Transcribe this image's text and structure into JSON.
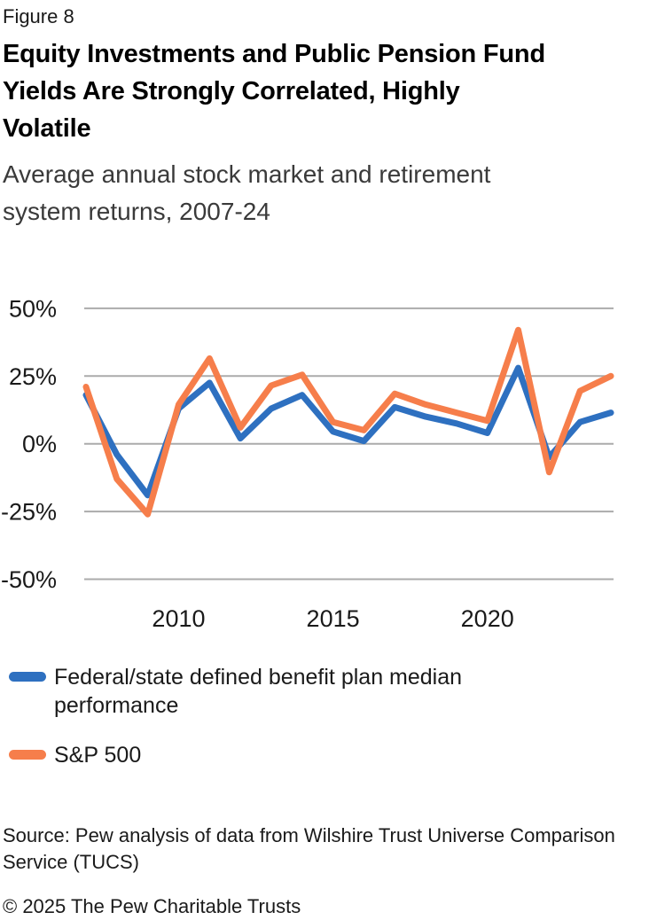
{
  "figure_label": "Figure 8",
  "title_lines": [
    "Equity Investments and Public Pension Fund",
    "Yields Are Strongly Correlated, Highly",
    "Volatile"
  ],
  "subtitle_lines": [
    "Average annual stock market and retirement",
    "system returns, 2007-24"
  ],
  "chart_data": {
    "type": "line",
    "x": [
      2007,
      2008,
      2009,
      2010,
      2011,
      2012,
      2013,
      2014,
      2015,
      2016,
      2017,
      2018,
      2019,
      2020,
      2021,
      2022,
      2023,
      2024
    ],
    "series": [
      {
        "name": "Federal/state defined benefit plan median performance",
        "color": "#2E70C0",
        "values": [
          18,
          -4,
          -19,
          13,
          22.5,
          2,
          13,
          18,
          4.5,
          1,
          13.5,
          10,
          7.5,
          4,
          28,
          -5,
          8,
          11.5
        ]
      },
      {
        "name": "S&P 500",
        "color": "#F67E4B",
        "values": [
          21,
          -13,
          -26,
          14.5,
          31.5,
          6,
          21.5,
          25.5,
          8,
          5,
          18.5,
          14.5,
          11.5,
          8.5,
          42,
          -10.5,
          19.5,
          25
        ]
      }
    ],
    "ylim": [
      -50,
      50
    ],
    "yticks": [
      {
        "label": "50%",
        "value": 50
      },
      {
        "label": "25%",
        "value": 25
      },
      {
        "label": "0%",
        "value": 0
      },
      {
        "label": "-25%",
        "value": -25
      },
      {
        "label": "-50%",
        "value": -50
      }
    ],
    "xticks": [
      {
        "label": "2010",
        "value": 2010
      },
      {
        "label": "2015",
        "value": 2015
      },
      {
        "label": "2020",
        "value": 2020
      }
    ],
    "grid": "horizontal-only",
    "legend_position": "below-left"
  },
  "legend": {
    "items": [
      {
        "label_lines": [
          "Federal/state defined benefit plan median",
          "performance"
        ],
        "color": "#2E70C0"
      },
      {
        "label_lines": [
          "S&P 500"
        ],
        "color": "#F67E4B"
      }
    ]
  },
  "source_lines": [
    "Source: Pew analysis of data from Wilshire Trust Universe Comparison",
    "Service (TUCS)"
  ],
  "copyright": "© 2025 The Pew Charitable Trusts",
  "colors": {
    "grid_line": "#ABABAB",
    "title_text": "#000000",
    "subtitle_text": "#3A3A3A",
    "body_text": "#1A1A1A",
    "background": "#FFFFFF"
  }
}
